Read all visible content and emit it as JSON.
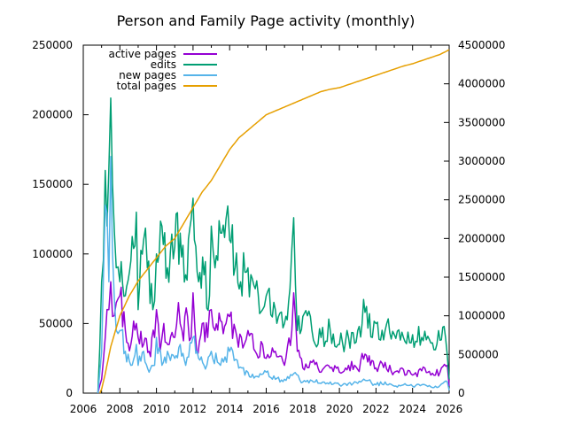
{
  "chart_data": {
    "type": "line",
    "title": "Person and Family Page activity (monthly)",
    "xlabel": "",
    "ylabel": "",
    "y2label": "",
    "xlim": [
      2006,
      2026
    ],
    "ylim": [
      0,
      250000
    ],
    "y2lim": [
      0,
      4500000
    ],
    "x_ticks": [
      "2006",
      "2008",
      "2010",
      "2012",
      "2014",
      "2016",
      "2018",
      "2020",
      "2022",
      "2024",
      "2026"
    ],
    "y_ticks": [
      "0",
      "50000",
      "100000",
      "150000",
      "200000",
      "250000"
    ],
    "y2_ticks": [
      "0",
      "500000",
      "1000000",
      "1500000",
      "2000000",
      "2500000",
      "3000000",
      "3500000",
      "4000000",
      "4500000"
    ],
    "legend_position": "top-left",
    "grid": false,
    "series": [
      {
        "name": "active pages",
        "axis": "y",
        "color": "#9400d3",
        "x": [
          2006.8,
          2007.0,
          2007.2,
          2007.4,
          2007.5,
          2007.6,
          2007.8,
          2008.0,
          2008.3,
          2008.6,
          2008.9,
          2009.0,
          2009.3,
          2009.6,
          2009.9,
          2010.0,
          2010.2,
          2010.4,
          2010.7,
          2011.0,
          2011.2,
          2011.4,
          2011.7,
          2011.9,
          2012.0,
          2012.2,
          2012.5,
          2012.8,
          2013.0,
          2013.2,
          2013.5,
          2013.8,
          2014.0,
          2014.4,
          2014.8,
          2015.0,
          2015.4,
          2015.8,
          2016.0,
          2016.5,
          2017.0,
          2017.4,
          2017.5,
          2017.7,
          2018.0,
          2018.5,
          2019.0,
          2019.5,
          2020.0,
          2020.5,
          2021.0,
          2021.4,
          2021.7,
          2022.0,
          2022.5,
          2023.0,
          2023.5,
          2024.0,
          2024.5,
          2025.0,
          2025.5,
          2025.9,
          2026.0
        ],
        "values": [
          0,
          10000,
          40000,
          60000,
          80000,
          55000,
          65000,
          70000,
          45000,
          35000,
          50000,
          40000,
          35000,
          30000,
          40000,
          60000,
          30000,
          50000,
          35000,
          40000,
          65000,
          45000,
          55000,
          40000,
          72000,
          30000,
          50000,
          40000,
          60000,
          45000,
          52000,
          50000,
          55000,
          40000,
          35000,
          45000,
          30000,
          35000,
          25000,
          30000,
          20000,
          45000,
          72000,
          30000,
          18000,
          22000,
          15000,
          18000,
          15000,
          20000,
          17000,
          28000,
          20000,
          18000,
          22000,
          15000,
          17000,
          13000,
          16000,
          13000,
          15000,
          20000,
          5000
        ]
      },
      {
        "name": "edits",
        "axis": "y",
        "color": "#009e73",
        "x": [
          2006.8,
          2007.0,
          2007.2,
          2007.3,
          2007.5,
          2007.6,
          2007.8,
          2008.0,
          2008.3,
          2008.6,
          2008.9,
          2009.0,
          2009.3,
          2009.5,
          2009.8,
          2010.0,
          2010.3,
          2010.6,
          2011.0,
          2011.3,
          2011.6,
          2011.9,
          2012.0,
          2012.3,
          2012.6,
          2012.9,
          2013.0,
          2013.2,
          2013.5,
          2013.8,
          2014.0,
          2014.3,
          2014.6,
          2015.0,
          2015.4,
          2015.8,
          2016.0,
          2016.5,
          2017.0,
          2017.3,
          2017.5,
          2017.7,
          2018.0,
          2018.5,
          2019.0,
          2019.5,
          2020.0,
          2020.5,
          2021.0,
          2021.4,
          2021.8,
          2022.0,
          2022.5,
          2023.0,
          2023.5,
          2024.0,
          2024.5,
          2025.0,
          2025.5,
          2025.8,
          2026.0
        ],
        "values": [
          0,
          80000,
          160000,
          120000,
          212000,
          150000,
          90000,
          80000,
          70000,
          95000,
          130000,
          60000,
          110000,
          90000,
          60000,
          100000,
          120000,
          90000,
          105000,
          115000,
          85000,
          125000,
          140000,
          80000,
          85000,
          70000,
          120000,
          90000,
          115000,
          125000,
          110000,
          90000,
          80000,
          90000,
          75000,
          60000,
          70000,
          60000,
          50000,
          75000,
          126000,
          45000,
          55000,
          45000,
          40000,
          45000,
          35000,
          40000,
          45000,
          58000,
          40000,
          50000,
          45000,
          42000,
          40000,
          42000,
          40000,
          36000,
          38000,
          40000,
          10000
        ]
      },
      {
        "name": "new pages",
        "axis": "y",
        "color": "#56b4e9",
        "x": [
          2006.8,
          2007.0,
          2007.2,
          2007.4,
          2007.5,
          2007.6,
          2007.8,
          2008.0,
          2008.3,
          2008.6,
          2008.9,
          2009.0,
          2009.3,
          2009.6,
          2009.9,
          2010.0,
          2010.3,
          2010.6,
          2011.0,
          2011.3,
          2011.6,
          2012.0,
          2012.3,
          2012.6,
          2013.0,
          2013.5,
          2014.0,
          2014.5,
          2015.0,
          2015.5,
          2016.0,
          2016.5,
          2017.0,
          2017.5,
          2018.0,
          2018.5,
          2019.0,
          2019.5,
          2020.0,
          2020.5,
          2021.0,
          2021.5,
          2022.0,
          2022.5,
          2023.0,
          2023.5,
          2024.0,
          2024.5,
          2025.0,
          2025.5,
          2025.9,
          2026.0
        ],
        "values": [
          0,
          30000,
          135000,
          80000,
          170000,
          100000,
          45000,
          45000,
          30000,
          20000,
          35000,
          20000,
          30000,
          15000,
          20000,
          40000,
          20000,
          30000,
          25000,
          35000,
          20000,
          40000,
          25000,
          20000,
          30000,
          20000,
          30000,
          18000,
          15000,
          12000,
          15000,
          10000,
          10000,
          14000,
          8000,
          9000,
          7000,
          8000,
          6000,
          7000,
          7000,
          9000,
          6000,
          8000,
          5000,
          6000,
          5000,
          6000,
          4500,
          5500,
          8000,
          2000
        ]
      },
      {
        "name": "total pages",
        "axis": "y2",
        "color": "#e69f00",
        "x": [
          2006.9,
          2007.0,
          2007.2,
          2007.5,
          2008.0,
          2008.5,
          2009.0,
          2009.5,
          2010.0,
          2010.5,
          2011.0,
          2011.5,
          2012.0,
          2012.5,
          2013.0,
          2013.5,
          2014.0,
          2014.5,
          2015.0,
          2015.5,
          2016.0,
          2016.5,
          2017.0,
          2017.5,
          2018.0,
          2018.5,
          2019.0,
          2019.5,
          2020.0,
          2020.5,
          2021.0,
          2021.5,
          2022.0,
          2022.5,
          2023.0,
          2023.5,
          2024.0,
          2024.5,
          2025.0,
          2025.5,
          2026.0
        ],
        "values": [
          0,
          50000,
          250000,
          600000,
          1000000,
          1250000,
          1450000,
          1600000,
          1750000,
          1900000,
          2000000,
          2200000,
          2400000,
          2600000,
          2750000,
          2950000,
          3150000,
          3300000,
          3400000,
          3500000,
          3600000,
          3650000,
          3700000,
          3750000,
          3800000,
          3850000,
          3900000,
          3930000,
          3950000,
          3990000,
          4030000,
          4070000,
          4110000,
          4150000,
          4190000,
          4230000,
          4260000,
          4300000,
          4340000,
          4380000,
          4440000
        ]
      }
    ]
  }
}
